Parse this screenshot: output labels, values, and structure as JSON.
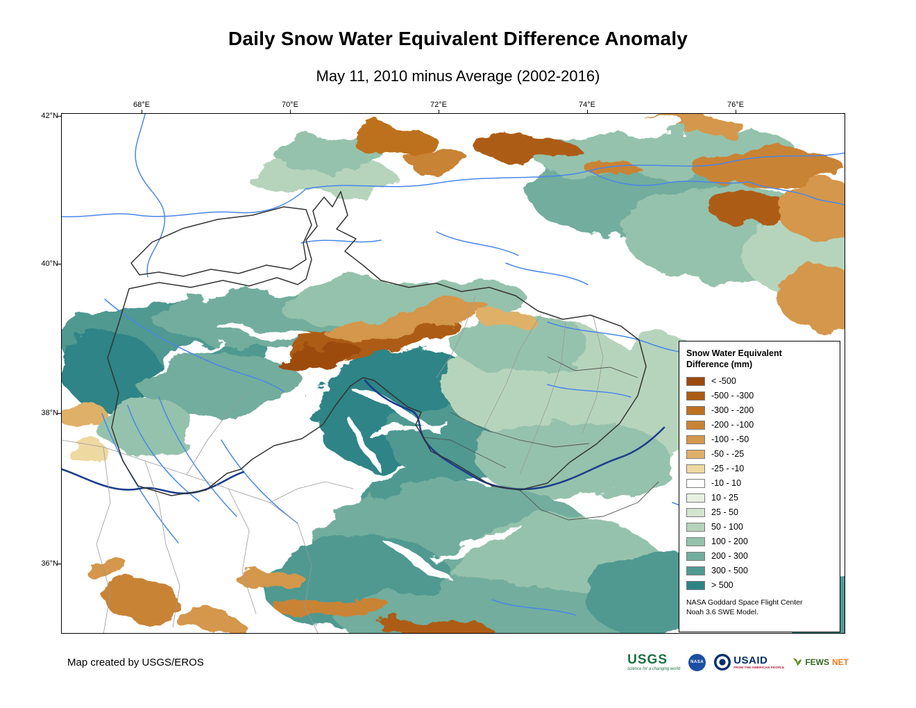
{
  "page": {
    "title": "Daily Snow Water Equivalent Difference Anomaly",
    "subtitle": "May 11, 2010 minus Average (2002-2016)",
    "credit": "Map created by USGS/EROS"
  },
  "map": {
    "x_axis_labels": [
      "68°E",
      "70°E",
      "72°E",
      "74°E",
      "76°E"
    ],
    "y_axis_labels": [
      "42°N",
      "40°N",
      "38°N",
      "36°N"
    ]
  },
  "legend": {
    "title_line1": "Snow Water Equivalent",
    "title_line2": "Difference (mm)",
    "items": [
      {
        "label": "< -500",
        "color": "#9c4b0c"
      },
      {
        "label": "-500 - -300",
        "color": "#ad5c12"
      },
      {
        "label": "-300 - -200",
        "color": "#bd711f"
      },
      {
        "label": "-200 - -100",
        "color": "#c98334"
      },
      {
        "label": "-100 - -50",
        "color": "#d4974b"
      },
      {
        "label": "-50 - -25",
        "color": "#dfb068"
      },
      {
        "label": "-25 - -10",
        "color": "#eed9a1"
      },
      {
        "label": "-10 - 10",
        "color": "#ffffff"
      },
      {
        "label": "10 - 25",
        "color": "#e9f0e1"
      },
      {
        "label": "25 - 50",
        "color": "#d3e4cf"
      },
      {
        "label": "50 - 100",
        "color": "#b6d4bc"
      },
      {
        "label": "100 - 200",
        "color": "#95c2ac"
      },
      {
        "label": "200 - 300",
        "color": "#72ad9d"
      },
      {
        "label": "300 - 500",
        "color": "#4f9991"
      },
      {
        "label": "> 500",
        "color": "#2d8486"
      }
    ],
    "note_line1": "NASA Goddard Space Flight Center",
    "note_line2": "Noah 3.6 SWE Model."
  },
  "footer": {
    "usgs": {
      "text": "USGS",
      "tagline": "science for a changing world"
    },
    "nasa": {
      "text": "NASA"
    },
    "usaid": {
      "text": "USAID",
      "tagline": "FROM THE AMERICAN PEOPLE"
    },
    "fewsnet": {
      "text_primary": "FEWS",
      "text_secondary": "NET"
    }
  }
}
